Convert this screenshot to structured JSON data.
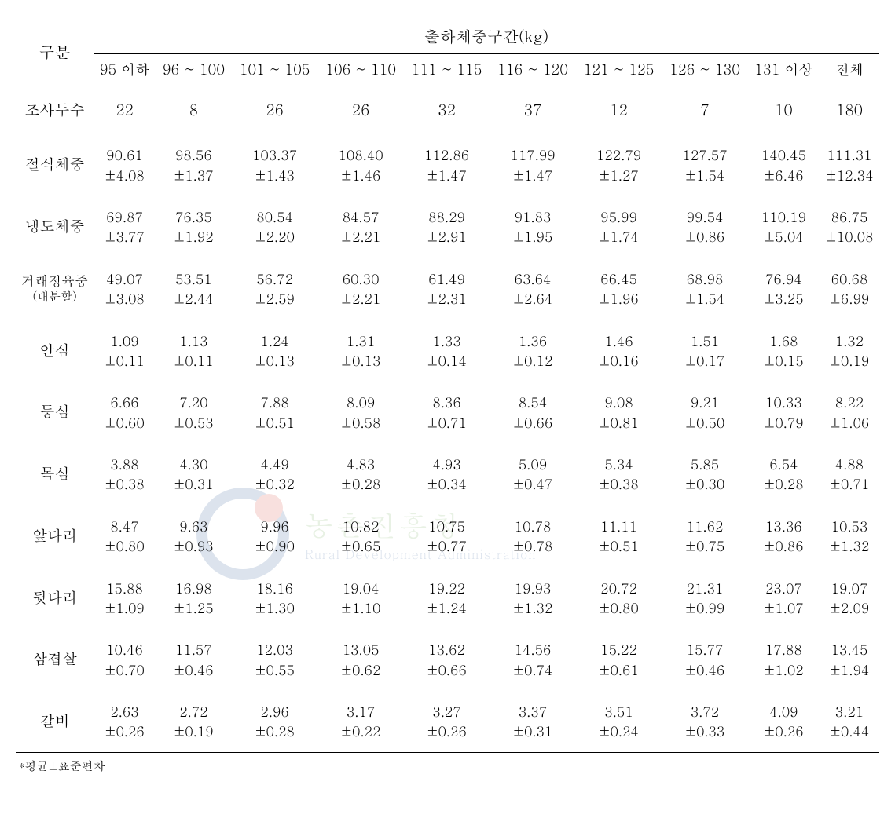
{
  "table": {
    "corner_label": "구분",
    "spanning_header": "출하체중구간(kg)",
    "col_headers": [
      "95 이하",
      "96 ~ 100",
      "101 ~ 105",
      "106 ~ 110",
      "111 ~ 115",
      "116 ~ 120",
      "121 ~ 125",
      "126 ~ 130",
      "131 이상",
      "전체"
    ],
    "count_label": "조사두수",
    "counts": [
      "22",
      "8",
      "26",
      "26",
      "32",
      "37",
      "12",
      "7",
      "10",
      "180"
    ],
    "rows": [
      {
        "label": "절식체중",
        "mean": [
          "90.61",
          "98.56",
          "103.37",
          "108.40",
          "112.86",
          "117.99",
          "122.79",
          "127.57",
          "140.45",
          "111.31"
        ],
        "sd": [
          "4.08",
          "1.37",
          "1.43",
          "1.46",
          "1.47",
          "1.47",
          "1.27",
          "1.54",
          "6.46",
          "12.34"
        ]
      },
      {
        "label": "냉도체중",
        "mean": [
          "69.87",
          "76.35",
          "80.54",
          "84.57",
          "88.29",
          "91.83",
          "95.99",
          "99.54",
          "110.19",
          "86.75"
        ],
        "sd": [
          "3.77",
          "1.92",
          "2.20",
          "2.21",
          "2.91",
          "1.95",
          "1.74",
          "0.86",
          "5.04",
          "10.08"
        ]
      },
      {
        "label": "거래정육중",
        "sub": "(대분할)",
        "mean": [
          "49.07",
          "53.51",
          "56.72",
          "60.30",
          "61.49",
          "63.64",
          "66.45",
          "68.98",
          "76.94",
          "60.68"
        ],
        "sd": [
          "3.08",
          "2.44",
          "2.59",
          "2.21",
          "2.31",
          "2.64",
          "1.96",
          "1.54",
          "3.25",
          "6.99"
        ]
      },
      {
        "label": "안심",
        "mean": [
          "1.09",
          "1.13",
          "1.24",
          "1.31",
          "1.33",
          "1.36",
          "1.46",
          "1.51",
          "1.68",
          "1.32"
        ],
        "sd": [
          "0.11",
          "0.11",
          "0.13",
          "0.13",
          "0.14",
          "0.12",
          "0.16",
          "0.17",
          "0.15",
          "0.19"
        ]
      },
      {
        "label": "등심",
        "mean": [
          "6.66",
          "7.20",
          "7.88",
          "8.09",
          "8.36",
          "8.54",
          "9.08",
          "9.21",
          "10.33",
          "8.22"
        ],
        "sd": [
          "0.60",
          "0.53",
          "0.51",
          "0.58",
          "0.71",
          "0.66",
          "0.81",
          "0.50",
          "0.79",
          "1.06"
        ]
      },
      {
        "label": "목심",
        "mean": [
          "3.88",
          "4.30",
          "4.49",
          "4.83",
          "4.93",
          "5.09",
          "5.34",
          "5.85",
          "6.54",
          "4.88"
        ],
        "sd": [
          "0.38",
          "0.31",
          "0.32",
          "0.28",
          "0.34",
          "0.47",
          "0.38",
          "0.30",
          "0.28",
          "0.71"
        ]
      },
      {
        "label": "앞다리",
        "mean": [
          "8.47",
          "9.63",
          "9.96",
          "10.82",
          "10.75",
          "10.78",
          "11.11",
          "11.62",
          "13.36",
          "10.53"
        ],
        "sd": [
          "0.80",
          "0.93",
          "0.90",
          "0.65",
          "0.77",
          "0.78",
          "0.51",
          "0.75",
          "0.86",
          "1.32"
        ]
      },
      {
        "label": "뒷다리",
        "mean": [
          "15.88",
          "16.98",
          "18.16",
          "19.04",
          "19.22",
          "19.93",
          "20.72",
          "21.31",
          "23.07",
          "19.07"
        ],
        "sd": [
          "1.09",
          "1.25",
          "1.30",
          "1.10",
          "1.24",
          "1.32",
          "0.80",
          "0.99",
          "1.07",
          "2.09"
        ]
      },
      {
        "label": "삼겹살",
        "mean": [
          "10.46",
          "11.57",
          "12.03",
          "13.05",
          "13.62",
          "14.56",
          "15.22",
          "15.77",
          "17.88",
          "13.45"
        ],
        "sd": [
          "0.70",
          "0.46",
          "0.55",
          "0.62",
          "0.66",
          "0.74",
          "0.61",
          "0.46",
          "1.02",
          "1.94"
        ]
      },
      {
        "label": "갈비",
        "mean": [
          "2.63",
          "2.72",
          "2.96",
          "3.17",
          "3.27",
          "3.37",
          "3.51",
          "3.72",
          "4.09",
          "3.21"
        ],
        "sd": [
          "0.26",
          "0.19",
          "0.28",
          "0.22",
          "0.26",
          "0.31",
          "0.24",
          "0.33",
          "0.26",
          "0.44"
        ]
      }
    ],
    "footnote": "*평균±표준편차"
  },
  "style": {
    "font_family": "Malgun Gothic, Batang, serif",
    "text_color": "#000000",
    "background_color": "#ffffff",
    "border_color": "#000000",
    "watermark_ko": "농촌진흥청",
    "watermark_en": "Rural Development Administration"
  }
}
